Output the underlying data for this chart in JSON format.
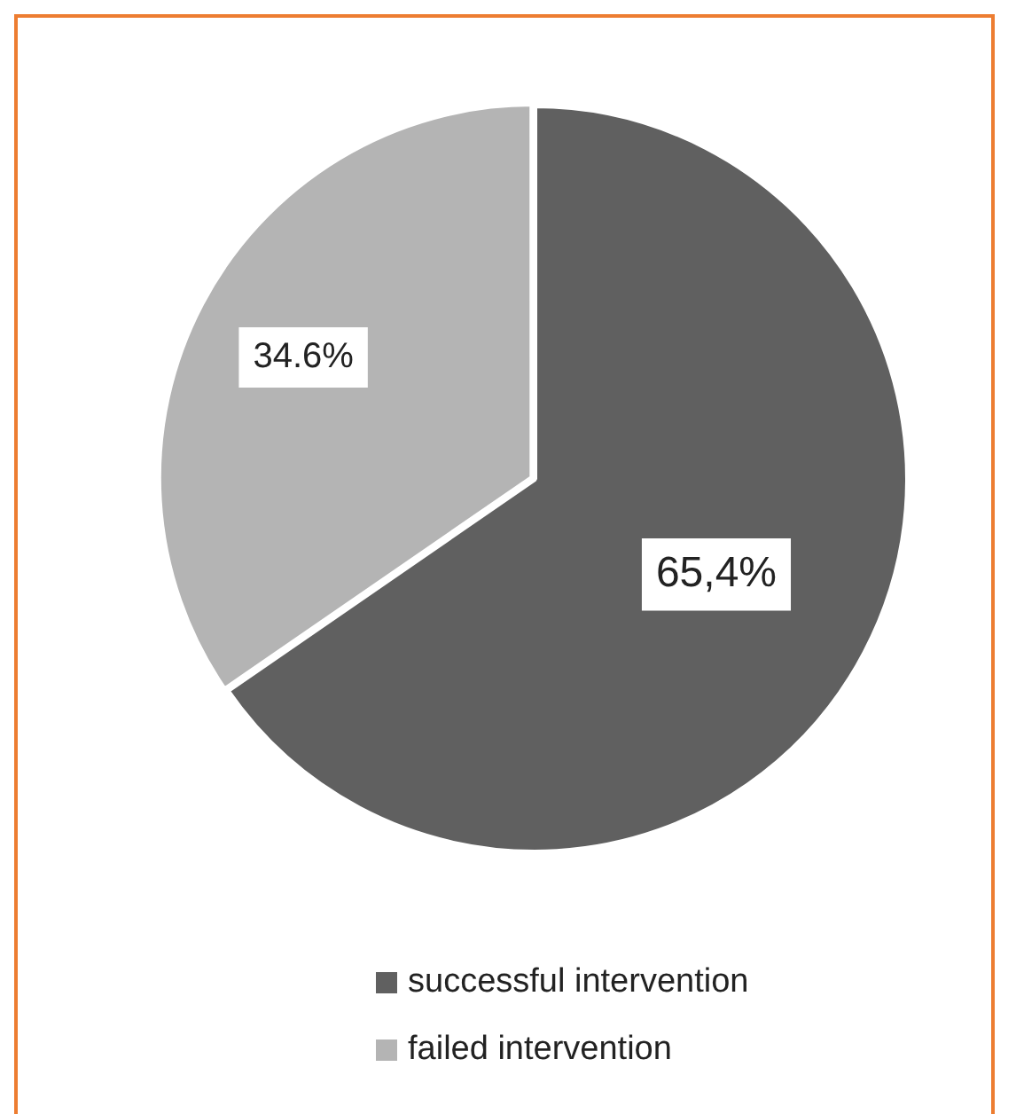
{
  "chart_data": {
    "type": "pie",
    "categories": [
      "successful intervention",
      "failed intervention"
    ],
    "values": [
      65.4,
      34.6
    ],
    "colors": [
      "#606060",
      "#b4b4b4"
    ],
    "value_labels": [
      "65,4%",
      "34.6%"
    ],
    "legend": "bottom"
  }
}
